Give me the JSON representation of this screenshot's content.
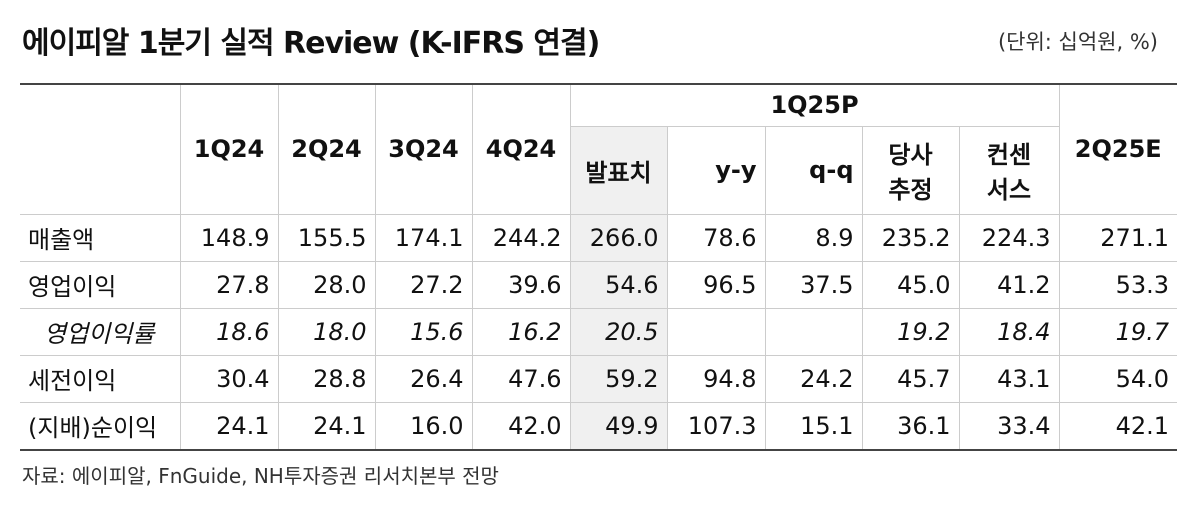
{
  "header": {
    "title": "에이피알 1분기 실적 Review (K-IFRS 연결)",
    "unit": "(단위: 십억원, %)"
  },
  "table": {
    "group_header": "1Q25P",
    "columns": [
      "1Q24",
      "2Q24",
      "3Q24",
      "4Q24",
      "발표치",
      "y-y",
      "q-q",
      [
        "당사",
        "추정"
      ],
      [
        "컨센",
        "서스"
      ],
      "2Q25E"
    ],
    "rows": [
      {
        "label": "매출액",
        "values": [
          "148.9",
          "155.5",
          "174.1",
          "244.2",
          "266.0",
          "78.6",
          "8.9",
          "235.2",
          "224.3",
          "271.1"
        ]
      },
      {
        "label": "영업이익",
        "values": [
          "27.8",
          "28.0",
          "27.2",
          "39.6",
          "54.6",
          "96.5",
          "37.5",
          "45.0",
          "41.2",
          "53.3"
        ]
      },
      {
        "label": "영업이익률",
        "values": [
          "18.6",
          "18.0",
          "15.6",
          "16.2",
          "20.5",
          null,
          null,
          "19.2",
          "18.4",
          "19.7"
        ]
      },
      {
        "label": "세전이익",
        "values": [
          "30.4",
          "28.8",
          "26.4",
          "47.6",
          "59.2",
          "94.8",
          "24.2",
          "45.7",
          "43.1",
          "54.0"
        ]
      },
      {
        "label": "(지배)순이익",
        "values": [
          "24.1",
          "24.1",
          "16.0",
          "42.0",
          "49.9",
          "107.3",
          "15.1",
          "36.1",
          "33.4",
          "42.1"
        ]
      }
    ]
  },
  "footer": {
    "source": "자료: 에이피알, FnGuide, NH투자증권 리서치본부 전망"
  }
}
